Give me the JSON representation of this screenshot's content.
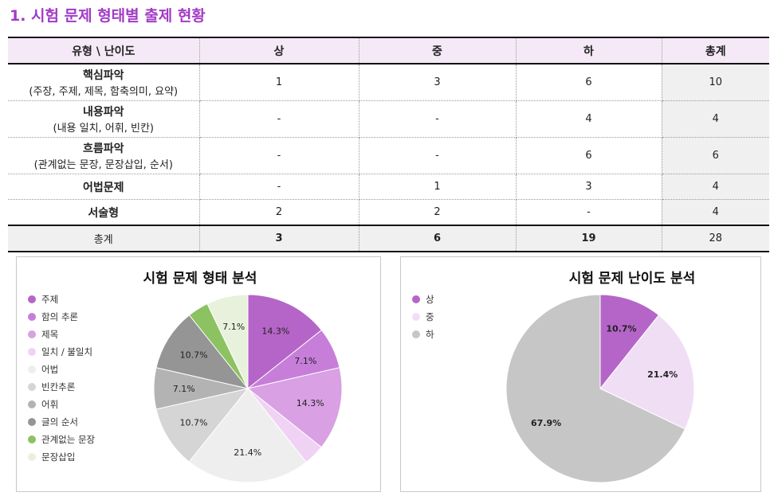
{
  "title": "1. 시험 문제 형태별 출제 현황",
  "table": {
    "headers": [
      "유형 \\ 난이도",
      "상",
      "중",
      "하",
      "총계"
    ],
    "rows": [
      {
        "name": "핵심파악",
        "sub": "(주장, 주제, 제목, 함축의미, 요약)",
        "values": [
          "1",
          "3",
          "6",
          "10"
        ]
      },
      {
        "name": "내용파악",
        "sub": "(내용 일치, 어휘, 빈칸)",
        "values": [
          "-",
          "-",
          "4",
          "4"
        ]
      },
      {
        "name": "흐름파악",
        "sub": "(관계없는 문장, 문장삽입, 순서)",
        "values": [
          "-",
          "-",
          "6",
          "6"
        ]
      },
      {
        "name": "어법문제",
        "sub": "",
        "values": [
          "-",
          "1",
          "3",
          "4"
        ]
      },
      {
        "name": "서술형",
        "sub": "",
        "values": [
          "2",
          "2",
          "-",
          "4"
        ]
      }
    ],
    "total": {
      "label": "총계",
      "values": [
        "3",
        "6",
        "19",
        "28"
      ]
    }
  },
  "chart_data": [
    {
      "type": "pie",
      "title": "시험 문제 형태 분석",
      "categories": [
        "주제",
        "함의 추론",
        "제목",
        "일치 / 불일치",
        "어법",
        "빈칸추론",
        "어휘",
        "글의 순서",
        "관계없는 문장",
        "문장삽입"
      ],
      "values": [
        14.3,
        7.1,
        14.3,
        3.6,
        21.4,
        10.7,
        7.1,
        10.7,
        3.6,
        7.1
      ],
      "labels": [
        "14.3%",
        "7.1%",
        "14.3%",
        "",
        "21.4%",
        "10.7%",
        "7.1%",
        "10.7%",
        "",
        "7.1%"
      ],
      "colors": [
        "#b565c8",
        "#c77ed9",
        "#d9a0e3",
        "#efd2f4",
        "#eeeeee",
        "#d5d5d5",
        "#b3b3b3",
        "#959595",
        "#8cc261",
        "#e8f1dc"
      ],
      "legend_position": "left"
    },
    {
      "type": "pie",
      "title": "시험 문제 난이도 분석",
      "categories": [
        "상",
        "중",
        "하"
      ],
      "values": [
        10.7,
        21.4,
        67.9
      ],
      "labels": [
        "10.7%",
        "21.4%",
        "67.9%"
      ],
      "colors": [
        "#b565c8",
        "#f0dff4",
        "#c6c6c6"
      ],
      "legend_position": "left"
    }
  ]
}
